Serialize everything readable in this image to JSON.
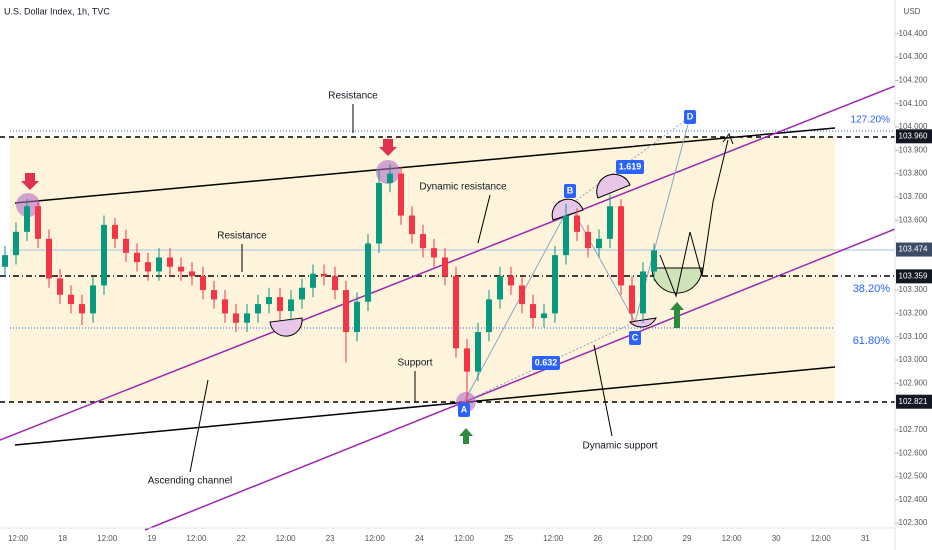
{
  "chart_data": {
    "type": "candlestick",
    "title": "U.S. Dollar Index, 1h, TVC",
    "currency": "USD",
    "up_color": "#089981",
    "down_color": "#f23645",
    "ylim": [
      102.279,
      104.545
    ],
    "yticks": [
      {
        "value": 102.3,
        "label": "102.300"
      },
      {
        "value": 102.4,
        "label": "102.400"
      },
      {
        "value": 102.5,
        "label": "102.500"
      },
      {
        "value": 102.6,
        "label": "102.600"
      },
      {
        "value": 102.7,
        "label": "102.700"
      },
      {
        "value": 102.9,
        "label": "102.900"
      },
      {
        "value": 103.0,
        "label": "103.000"
      },
      {
        "value": 103.1,
        "label": "103.100"
      },
      {
        "value": 103.2,
        "label": "103.200"
      },
      {
        "value": 103.3,
        "label": "103.300"
      },
      {
        "value": 103.6,
        "label": "103.600"
      },
      {
        "value": 103.7,
        "label": "103.700"
      },
      {
        "value": 103.8,
        "label": "103.800"
      },
      {
        "value": 103.9,
        "label": "103.900"
      },
      {
        "value": 104.0,
        "label": "104.000"
      },
      {
        "value": 104.1,
        "label": "104.100"
      },
      {
        "value": 104.2,
        "label": "104.200"
      },
      {
        "value": 104.3,
        "label": "104.300"
      },
      {
        "value": 104.4,
        "label": "104.400"
      }
    ],
    "price_lines": [
      {
        "value": 103.96,
        "label": "103.960",
        "color": "#131722"
      },
      {
        "value": 103.474,
        "label": "103.474",
        "color": "#3c4a66"
      },
      {
        "value": 103.359,
        "label": "103.359",
        "color": "#131722"
      },
      {
        "value": 102.821,
        "label": "102.821",
        "color": "#131722"
      }
    ],
    "x_labels": [
      "12:00",
      "18",
      "12:00",
      "19",
      "12:00",
      "22",
      "12:00",
      "23",
      "12:00",
      "24",
      "12:00",
      "25",
      "12:00",
      "26",
      "12:00",
      "29",
      "12:00",
      "30",
      "12:00",
      "31"
    ],
    "open": [
      103.4,
      103.45,
      103.55,
      103.66,
      103.52,
      103.35,
      103.28,
      103.24,
      103.2,
      103.32,
      103.58,
      103.52,
      103.46,
      103.42,
      103.38,
      103.44,
      103.4,
      103.38,
      103.36,
      103.3,
      103.26,
      103.2,
      103.16,
      103.2,
      103.24,
      103.27,
      103.21,
      103.26,
      103.31,
      103.37,
      103.36,
      103.3,
      103.12,
      103.25,
      103.5,
      103.76,
      103.8,
      103.62,
      103.54,
      103.48,
      103.44,
      103.36,
      103.05,
      102.95,
      103.12,
      103.26,
      103.36,
      103.32,
      103.24,
      103.18,
      103.2,
      103.45,
      103.62,
      103.55,
      103.48,
      103.52,
      103.66,
      103.32,
      103.2,
      103.38
    ],
    "high": [
      103.49,
      103.59,
      103.69,
      103.68,
      103.56,
      103.39,
      103.32,
      103.28,
      103.36,
      103.62,
      103.61,
      103.56,
      103.5,
      103.46,
      103.48,
      103.48,
      103.44,
      103.42,
      103.4,
      103.34,
      103.3,
      103.24,
      103.24,
      103.28,
      103.31,
      103.31,
      103.3,
      103.35,
      103.41,
      103.41,
      103.4,
      103.34,
      103.29,
      103.54,
      103.82,
      103.84,
      103.83,
      103.66,
      103.58,
      103.52,
      103.48,
      103.4,
      103.09,
      103.16,
      103.3,
      103.4,
      103.4,
      103.36,
      103.28,
      103.24,
      103.49,
      103.67,
      103.65,
      103.58,
      103.56,
      103.71,
      103.69,
      103.36,
      103.42,
      103.5
    ],
    "low": [
      103.36,
      103.41,
      103.51,
      103.48,
      103.31,
      103.24,
      103.2,
      103.15,
      103.16,
      103.28,
      103.48,
      103.42,
      103.38,
      103.34,
      103.34,
      103.36,
      103.34,
      103.32,
      103.26,
      103.22,
      103.16,
      103.12,
      103.12,
      103.16,
      103.2,
      103.17,
      103.17,
      103.22,
      103.27,
      103.32,
      103.26,
      102.99,
      103.08,
      103.21,
      103.46,
      103.72,
      103.58,
      103.5,
      103.44,
      103.4,
      103.32,
      103.01,
      102.82,
      102.91,
      103.08,
      103.22,
      103.28,
      103.2,
      103.14,
      103.14,
      103.16,
      103.41,
      103.51,
      103.44,
      103.44,
      103.48,
      103.28,
      103.15,
      103.16,
      103.34
    ],
    "close": [
      103.45,
      103.55,
      103.66,
      103.52,
      103.35,
      103.28,
      103.24,
      103.2,
      103.32,
      103.58,
      103.52,
      103.46,
      103.42,
      103.38,
      103.44,
      103.4,
      103.38,
      103.36,
      103.3,
      103.26,
      103.2,
      103.16,
      103.2,
      103.24,
      103.27,
      103.21,
      103.26,
      103.31,
      103.37,
      103.36,
      103.3,
      103.12,
      103.25,
      103.5,
      103.76,
      103.8,
      103.62,
      103.54,
      103.48,
      103.44,
      103.36,
      103.05,
      102.95,
      103.12,
      103.26,
      103.36,
      103.32,
      103.24,
      103.18,
      103.2,
      103.45,
      103.62,
      103.55,
      103.48,
      103.52,
      103.66,
      103.32,
      103.2,
      103.38,
      103.47
    ],
    "annotations": {
      "resistance_top": "Resistance",
      "resistance_mid": "Resistance",
      "dynamic_resistance": "Dynamic resistance",
      "support": "Support",
      "ascending_channel": "Ascending channel",
      "dynamic_support": "Dynamic support",
      "fib_127": "127.20%",
      "fib_38": "38.20%",
      "fib_61": "61.80%",
      "ratio_1619": "1.619",
      "ratio_0632": "0.632",
      "point_a": "A",
      "point_b": "B",
      "point_c": "C",
      "point_d": "D"
    }
  }
}
